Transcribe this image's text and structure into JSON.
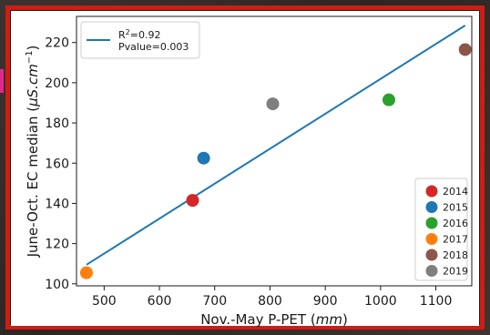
{
  "chart_data": {
    "type": "scatter",
    "xlabel_main": "Nov.-May P-PET (",
    "xlabel_unit": "mm",
    "xlabel_close": ")",
    "ylabel_main": "June-Oct. EC median (",
    "ylabel_unit": "μS.cm",
    "ylabel_sup": "−1",
    "ylabel_close": ")",
    "xlim": [
      450,
      1165
    ],
    "ylim": [
      99,
      233
    ],
    "xticks": [
      500,
      600,
      700,
      800,
      900,
      1000,
      1100
    ],
    "yticks": [
      100,
      120,
      140,
      160,
      180,
      200,
      220
    ],
    "grid": false,
    "series": [
      {
        "name": "2014",
        "color": "#d62728",
        "x": [
          660
        ],
        "y": [
          141.5
        ]
      },
      {
        "name": "2015",
        "color": "#1f77b4",
        "x": [
          680
        ],
        "y": [
          162.5
        ]
      },
      {
        "name": "2016",
        "color": "#2ca02c",
        "x": [
          1015
        ],
        "y": [
          191.5
        ]
      },
      {
        "name": "2017",
        "color": "#ff7f0e",
        "x": [
          468
        ],
        "y": [
          105.5
        ]
      },
      {
        "name": "2018",
        "color": "#8c564b",
        "x": [
          1153
        ],
        "y": [
          216.5
        ]
      },
      {
        "name": "2019",
        "color": "#7f7f7f",
        "x": [
          805
        ],
        "y": [
          189.5
        ]
      }
    ],
    "fit_line": {
      "color": "#1f77b4",
      "x": [
        468,
        1153
      ],
      "y": [
        109.5,
        228.5
      ],
      "label_r2_main": "R",
      "label_r2_sup": "2",
      "label_r2_value": "=0.92",
      "label_pvalue": "Pvalue=0.003"
    },
    "legend_fit_position": "top-left",
    "legend_years_position": "bottom-right"
  }
}
